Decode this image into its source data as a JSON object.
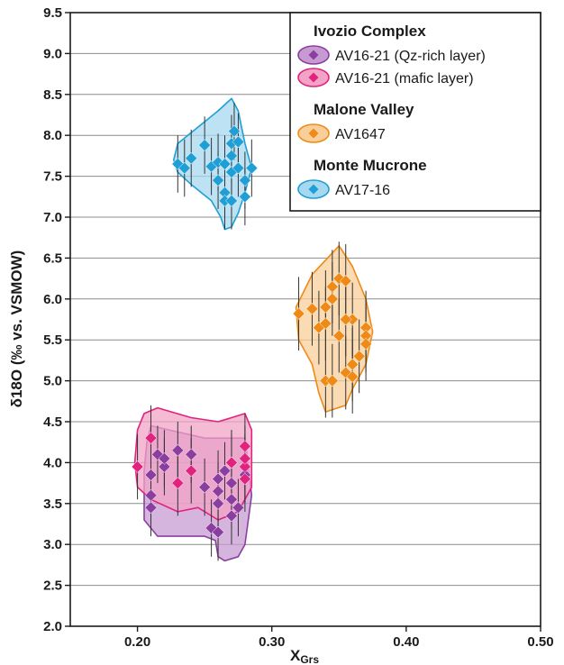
{
  "chart_data": {
    "type": "scatter",
    "title": "",
    "xlabel": {
      "main": "X",
      "sub": "Grs"
    },
    "ylabel": "δ18O (‰ vs. VSMOW)",
    "xlim": [
      0.15,
      0.5
    ],
    "ylim": [
      2.0,
      9.5
    ],
    "x_ticks": [
      "0.20",
      "0.30",
      "0.40",
      "0.50"
    ],
    "y_ticks": [
      "2.0",
      "2.5",
      "3.0",
      "3.5",
      "4.0",
      "4.5",
      "5.0",
      "5.5",
      "6.0",
      "6.5",
      "7.0",
      "7.5",
      "8.0",
      "8.5",
      "9.0",
      "9.5"
    ],
    "grid": "horizontal",
    "legend_placement": "top-right",
    "legend_groups": [
      {
        "title": "Ivozio Complex",
        "entries": [
          0,
          1
        ]
      },
      {
        "title": "Malone Valley",
        "entries": [
          2
        ]
      },
      {
        "title": "Monte Mucrone",
        "entries": [
          3
        ]
      }
    ],
    "series": [
      {
        "name": "AV16-21 (Qz-rich layer)",
        "color": "#8a3fa0",
        "fill": "#c79bd2",
        "envelope": [
          [
            0.21,
            4.45
          ],
          [
            0.25,
            4.3
          ],
          [
            0.28,
            4.3
          ],
          [
            0.285,
            3.6
          ],
          [
            0.28,
            3.0
          ],
          [
            0.275,
            2.85
          ],
          [
            0.265,
            2.8
          ],
          [
            0.26,
            2.85
          ],
          [
            0.258,
            3.05
          ],
          [
            0.25,
            3.1
          ],
          [
            0.215,
            3.1
          ],
          [
            0.205,
            3.3
          ],
          [
            0.205,
            3.9
          ],
          [
            0.207,
            4.25
          ]
        ],
        "points": [
          {
            "x": 0.21,
            "y": 3.45,
            "err": 0.35
          },
          {
            "x": 0.21,
            "y": 3.6,
            "err": 0.35
          },
          {
            "x": 0.21,
            "y": 3.85,
            "err": 0.35
          },
          {
            "x": 0.215,
            "y": 4.1,
            "err": 0.35
          },
          {
            "x": 0.22,
            "y": 3.95,
            "err": 0.35
          },
          {
            "x": 0.22,
            "y": 4.05,
            "err": 0.35
          },
          {
            "x": 0.23,
            "y": 4.15,
            "err": 0.35
          },
          {
            "x": 0.24,
            "y": 4.1,
            "err": 0.35
          },
          {
            "x": 0.25,
            "y": 3.7,
            "err": 0.35
          },
          {
            "x": 0.255,
            "y": 3.2,
            "err": 0.35
          },
          {
            "x": 0.26,
            "y": 3.15,
            "err": 0.35
          },
          {
            "x": 0.26,
            "y": 3.5,
            "err": 0.35
          },
          {
            "x": 0.26,
            "y": 3.8,
            "err": 0.35
          },
          {
            "x": 0.26,
            "y": 3.65,
            "err": 0.35
          },
          {
            "x": 0.265,
            "y": 3.9,
            "err": 0.35
          },
          {
            "x": 0.27,
            "y": 3.35,
            "err": 0.35
          },
          {
            "x": 0.27,
            "y": 3.55,
            "err": 0.35
          },
          {
            "x": 0.27,
            "y": 3.75,
            "err": 0.35
          },
          {
            "x": 0.27,
            "y": 4.0,
            "err": 0.35
          },
          {
            "x": 0.275,
            "y": 3.45,
            "err": 0.35
          },
          {
            "x": 0.28,
            "y": 3.85,
            "err": 0.35
          }
        ]
      },
      {
        "name": "AV16-21 (mafic layer)",
        "color": "#e2227f",
        "fill": "#f2a3c6",
        "envelope": [
          [
            0.205,
            4.6
          ],
          [
            0.215,
            4.67
          ],
          [
            0.24,
            4.55
          ],
          [
            0.26,
            4.5
          ],
          [
            0.27,
            4.55
          ],
          [
            0.28,
            4.6
          ],
          [
            0.285,
            4.4
          ],
          [
            0.285,
            3.7
          ],
          [
            0.275,
            3.4
          ],
          [
            0.26,
            3.3
          ],
          [
            0.245,
            3.45
          ],
          [
            0.23,
            3.4
          ],
          [
            0.21,
            3.55
          ],
          [
            0.2,
            3.7
          ],
          [
            0.198,
            4.0
          ],
          [
            0.2,
            4.4
          ]
        ],
        "points": [
          {
            "x": 0.2,
            "y": 3.95,
            "err": 0.4
          },
          {
            "x": 0.21,
            "y": 4.3,
            "err": 0.4
          },
          {
            "x": 0.23,
            "y": 3.75,
            "err": 0.4
          },
          {
            "x": 0.24,
            "y": 3.9,
            "err": 0.4
          },
          {
            "x": 0.27,
            "y": 4.0,
            "err": 0.4
          },
          {
            "x": 0.28,
            "y": 3.8,
            "err": 0.4
          },
          {
            "x": 0.28,
            "y": 3.95,
            "err": 0.4
          },
          {
            "x": 0.28,
            "y": 4.05,
            "err": 0.4
          },
          {
            "x": 0.28,
            "y": 4.2,
            "err": 0.4
          }
        ]
      },
      {
        "name": "AV1647",
        "color": "#ef8a17",
        "fill": "#f8cf9a",
        "envelope": [
          [
            0.33,
            6.3
          ],
          [
            0.35,
            6.65
          ],
          [
            0.36,
            6.4
          ],
          [
            0.37,
            6.0
          ],
          [
            0.375,
            5.6
          ],
          [
            0.37,
            5.2
          ],
          [
            0.36,
            4.9
          ],
          [
            0.355,
            4.7
          ],
          [
            0.34,
            4.62
          ],
          [
            0.335,
            4.85
          ],
          [
            0.33,
            5.2
          ],
          [
            0.32,
            5.5
          ],
          [
            0.318,
            5.9
          ]
        ],
        "points": [
          {
            "x": 0.32,
            "y": 5.82,
            "err": 0.45
          },
          {
            "x": 0.33,
            "y": 5.88,
            "err": 0.45
          },
          {
            "x": 0.335,
            "y": 5.65,
            "err": 0.45
          },
          {
            "x": 0.34,
            "y": 5.9,
            "err": 0.45
          },
          {
            "x": 0.34,
            "y": 5.7,
            "err": 0.45
          },
          {
            "x": 0.345,
            "y": 6.15,
            "err": 0.45
          },
          {
            "x": 0.345,
            "y": 6.0,
            "err": 0.45
          },
          {
            "x": 0.35,
            "y": 6.25,
            "err": 0.45
          },
          {
            "x": 0.35,
            "y": 5.55,
            "err": 0.45
          },
          {
            "x": 0.355,
            "y": 6.22,
            "err": 0.45
          },
          {
            "x": 0.355,
            "y": 5.1,
            "err": 0.45
          },
          {
            "x": 0.36,
            "y": 5.75,
            "err": 0.45
          },
          {
            "x": 0.36,
            "y": 5.05,
            "err": 0.45
          },
          {
            "x": 0.36,
            "y": 5.2,
            "err": 0.45
          },
          {
            "x": 0.365,
            "y": 5.3,
            "err": 0.45
          },
          {
            "x": 0.37,
            "y": 5.65,
            "err": 0.45
          },
          {
            "x": 0.37,
            "y": 5.55,
            "err": 0.45
          },
          {
            "x": 0.37,
            "y": 5.45,
            "err": 0.45
          },
          {
            "x": 0.34,
            "y": 5.0,
            "err": 0.45
          },
          {
            "x": 0.345,
            "y": 5.0,
            "err": 0.45
          },
          {
            "x": 0.355,
            "y": 5.75,
            "err": 0.45
          }
        ]
      },
      {
        "name": "AV17-16",
        "color": "#1f9fd6",
        "fill": "#a6d8ef",
        "envelope": [
          [
            0.23,
            7.9
          ],
          [
            0.26,
            8.3
          ],
          [
            0.27,
            8.45
          ],
          [
            0.275,
            8.3
          ],
          [
            0.28,
            7.9
          ],
          [
            0.285,
            7.6
          ],
          [
            0.28,
            7.3
          ],
          [
            0.275,
            7.05
          ],
          [
            0.27,
            6.88
          ],
          [
            0.265,
            6.85
          ],
          [
            0.262,
            7.0
          ],
          [
            0.255,
            7.2
          ],
          [
            0.24,
            7.4
          ],
          [
            0.23,
            7.55
          ],
          [
            0.227,
            7.7
          ]
        ],
        "points": [
          {
            "x": 0.23,
            "y": 7.65,
            "err": 0.35
          },
          {
            "x": 0.235,
            "y": 7.6,
            "err": 0.35
          },
          {
            "x": 0.24,
            "y": 7.72,
            "err": 0.35
          },
          {
            "x": 0.25,
            "y": 7.88,
            "err": 0.35
          },
          {
            "x": 0.255,
            "y": 7.62,
            "err": 0.35
          },
          {
            "x": 0.26,
            "y": 7.67,
            "err": 0.35
          },
          {
            "x": 0.26,
            "y": 7.45,
            "err": 0.35
          },
          {
            "x": 0.265,
            "y": 7.3,
            "err": 0.35
          },
          {
            "x": 0.265,
            "y": 7.2,
            "err": 0.35
          },
          {
            "x": 0.27,
            "y": 7.55,
            "err": 0.35
          },
          {
            "x": 0.27,
            "y": 7.75,
            "err": 0.35
          },
          {
            "x": 0.27,
            "y": 7.9,
            "err": 0.35
          },
          {
            "x": 0.272,
            "y": 8.05,
            "err": 0.35
          },
          {
            "x": 0.275,
            "y": 7.6,
            "err": 0.35
          },
          {
            "x": 0.275,
            "y": 7.92,
            "err": 0.35
          },
          {
            "x": 0.28,
            "y": 7.25,
            "err": 0.35
          },
          {
            "x": 0.28,
            "y": 7.45,
            "err": 0.35
          },
          {
            "x": 0.285,
            "y": 7.6,
            "err": 0.35
          },
          {
            "x": 0.27,
            "y": 7.2,
            "err": 0.35
          },
          {
            "x": 0.265,
            "y": 7.65,
            "err": 0.35
          }
        ]
      }
    ]
  }
}
